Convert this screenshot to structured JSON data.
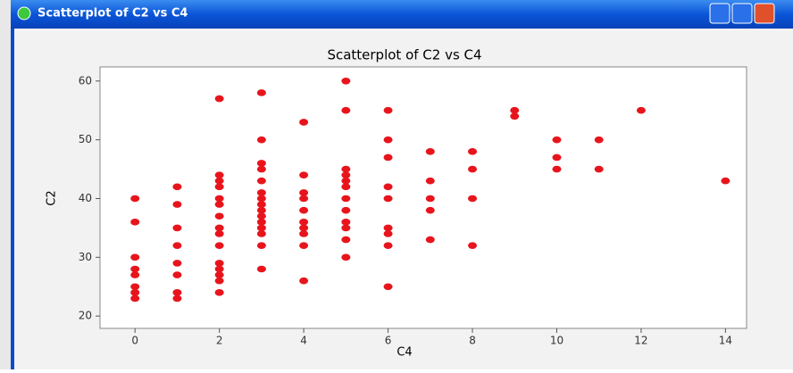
{
  "window_title": "Scatterplot of C2 vs C4",
  "chart_data": {
    "type": "scatter",
    "title": "Scatterplot of C2 vs C4",
    "xlabel": "C4",
    "ylabel": "C2",
    "color": "#e8141c",
    "x": [
      0,
      0,
      0,
      0,
      0,
      0,
      0,
      0,
      1,
      1,
      1,
      1,
      1,
      1,
      1,
      1,
      2,
      2,
      2,
      2,
      2,
      2,
      2,
      2,
      2,
      2,
      2,
      2,
      2,
      2,
      2,
      3,
      3,
      3,
      3,
      3,
      3,
      3,
      3,
      3,
      3,
      3,
      3,
      3,
      3,
      3,
      4,
      4,
      4,
      4,
      4,
      4,
      4,
      4,
      4,
      4,
      5,
      5,
      5,
      5,
      5,
      5,
      5,
      5,
      5,
      5,
      5,
      5,
      6,
      6,
      6,
      6,
      6,
      6,
      6,
      6,
      6,
      7,
      7,
      7,
      7,
      7,
      8,
      8,
      8,
      8,
      9,
      9,
      10,
      10,
      10,
      11,
      11,
      12,
      14
    ],
    "y": [
      40,
      36,
      30,
      28,
      27,
      25,
      24,
      23,
      42,
      39,
      35,
      32,
      29,
      27,
      24,
      23,
      57,
      44,
      43,
      42,
      40,
      39,
      37,
      35,
      34,
      32,
      29,
      28,
      27,
      26,
      24,
      58,
      50,
      46,
      45,
      43,
      41,
      40,
      39,
      38,
      37,
      36,
      35,
      34,
      32,
      28,
      53,
      44,
      41,
      40,
      38,
      36,
      35,
      34,
      32,
      26,
      60,
      55,
      45,
      44,
      43,
      42,
      40,
      38,
      36,
      35,
      33,
      30,
      55,
      50,
      47,
      42,
      40,
      35,
      34,
      32,
      25,
      48,
      43,
      40,
      38,
      33,
      48,
      45,
      40,
      32,
      55,
      54,
      50,
      47,
      45,
      50,
      45,
      55,
      43
    ],
    "xlim": [
      -0.83,
      14.5
    ],
    "xticks": [
      0,
      2,
      4,
      6,
      8,
      10,
      12,
      14
    ],
    "ylim": [
      17.9,
      62.4
    ],
    "yticks": [
      20,
      30,
      40,
      50,
      60
    ]
  }
}
